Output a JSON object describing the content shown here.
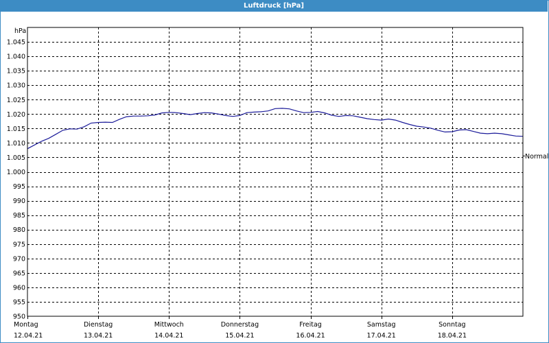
{
  "window": {
    "title": "Luftdruck [hPa]"
  },
  "colors": {
    "titlebar": "#3d8cc4",
    "series": "#1a1a99",
    "grid": "#000000"
  },
  "chart_data": {
    "type": "line",
    "title": "Luftdruck [hPa]",
    "ylabel": "hPa",
    "xlabel": "",
    "ylim": [
      950,
      1050
    ],
    "yticks": [
      950,
      955,
      960,
      965,
      970,
      975,
      980,
      985,
      990,
      995,
      1000,
      1005,
      1010,
      1015,
      1020,
      1025,
      1030,
      1035,
      1040,
      1045
    ],
    "ytick_labels": [
      "950",
      "955",
      "960",
      "965",
      "970",
      "975",
      "980",
      "985",
      "990",
      "995",
      "1.000",
      "1.005",
      "1.010",
      "1.015",
      "1.020",
      "1.025",
      "1.030",
      "1.035",
      "1.040",
      "1.045"
    ],
    "xlim": [
      0,
      7
    ],
    "xticks": [
      {
        "day": "Montag",
        "date": "12.04.21"
      },
      {
        "day": "Dienstag",
        "date": "13.04.21"
      },
      {
        "day": "Mittwoch",
        "date": "14.04.21"
      },
      {
        "day": "Donnerstag",
        "date": "15.04.21"
      },
      {
        "day": "Freitag",
        "date": "16.04.21"
      },
      {
        "day": "Samstag",
        "date": "17.04.21"
      },
      {
        "day": "Sonntag",
        "date": "18.04.21"
      }
    ],
    "reference": {
      "label": "Normal",
      "value": 1005.5
    },
    "grid": true,
    "series": [
      {
        "color": "#1a1a99",
        "x": [
          0,
          0.1,
          0.2,
          0.3,
          0.4,
          0.5,
          0.6,
          0.7,
          0.8,
          0.9,
          1.0,
          1.1,
          1.2,
          1.3,
          1.4,
          1.5,
          1.6,
          1.7,
          1.8,
          1.9,
          2.0,
          2.1,
          2.2,
          2.3,
          2.4,
          2.5,
          2.6,
          2.7,
          2.8,
          2.9,
          3.0,
          3.1,
          3.2,
          3.3,
          3.4,
          3.5,
          3.6,
          3.7,
          3.8,
          3.9,
          4.0,
          4.1,
          4.2,
          4.3,
          4.4,
          4.5,
          4.6,
          4.7,
          4.8,
          4.9,
          5.0,
          5.1,
          5.2,
          5.3,
          5.4,
          5.5,
          5.6,
          5.7,
          5.8,
          5.9,
          6.0,
          6.1,
          6.2,
          6.3,
          6.4,
          6.5,
          6.6,
          6.7,
          6.8,
          6.9,
          7.0
        ],
        "values": [
          1008.0,
          1009.3,
          1010.6,
          1011.6,
          1013.0,
          1014.4,
          1014.9,
          1014.8,
          1015.6,
          1016.9,
          1017.1,
          1017.2,
          1017.1,
          1018.2,
          1019.1,
          1019.3,
          1019.3,
          1019.4,
          1019.7,
          1020.4,
          1020.6,
          1020.5,
          1020.2,
          1019.8,
          1020.2,
          1020.5,
          1020.4,
          1020.0,
          1019.5,
          1019.2,
          1019.5,
          1020.5,
          1020.7,
          1020.8,
          1021.1,
          1021.9,
          1022.0,
          1021.8,
          1021.1,
          1020.5,
          1020.6,
          1020.9,
          1020.4,
          1019.6,
          1019.2,
          1019.5,
          1019.4,
          1018.9,
          1018.4,
          1018.1,
          1017.9,
          1018.3,
          1017.9,
          1017.1,
          1016.4,
          1015.8,
          1015.5,
          1015.1,
          1014.4,
          1013.8,
          1013.9,
          1014.5,
          1014.6,
          1014.0,
          1013.4,
          1013.2,
          1013.4,
          1013.2,
          1012.8,
          1012.4,
          1012.3
        ]
      }
    ]
  }
}
